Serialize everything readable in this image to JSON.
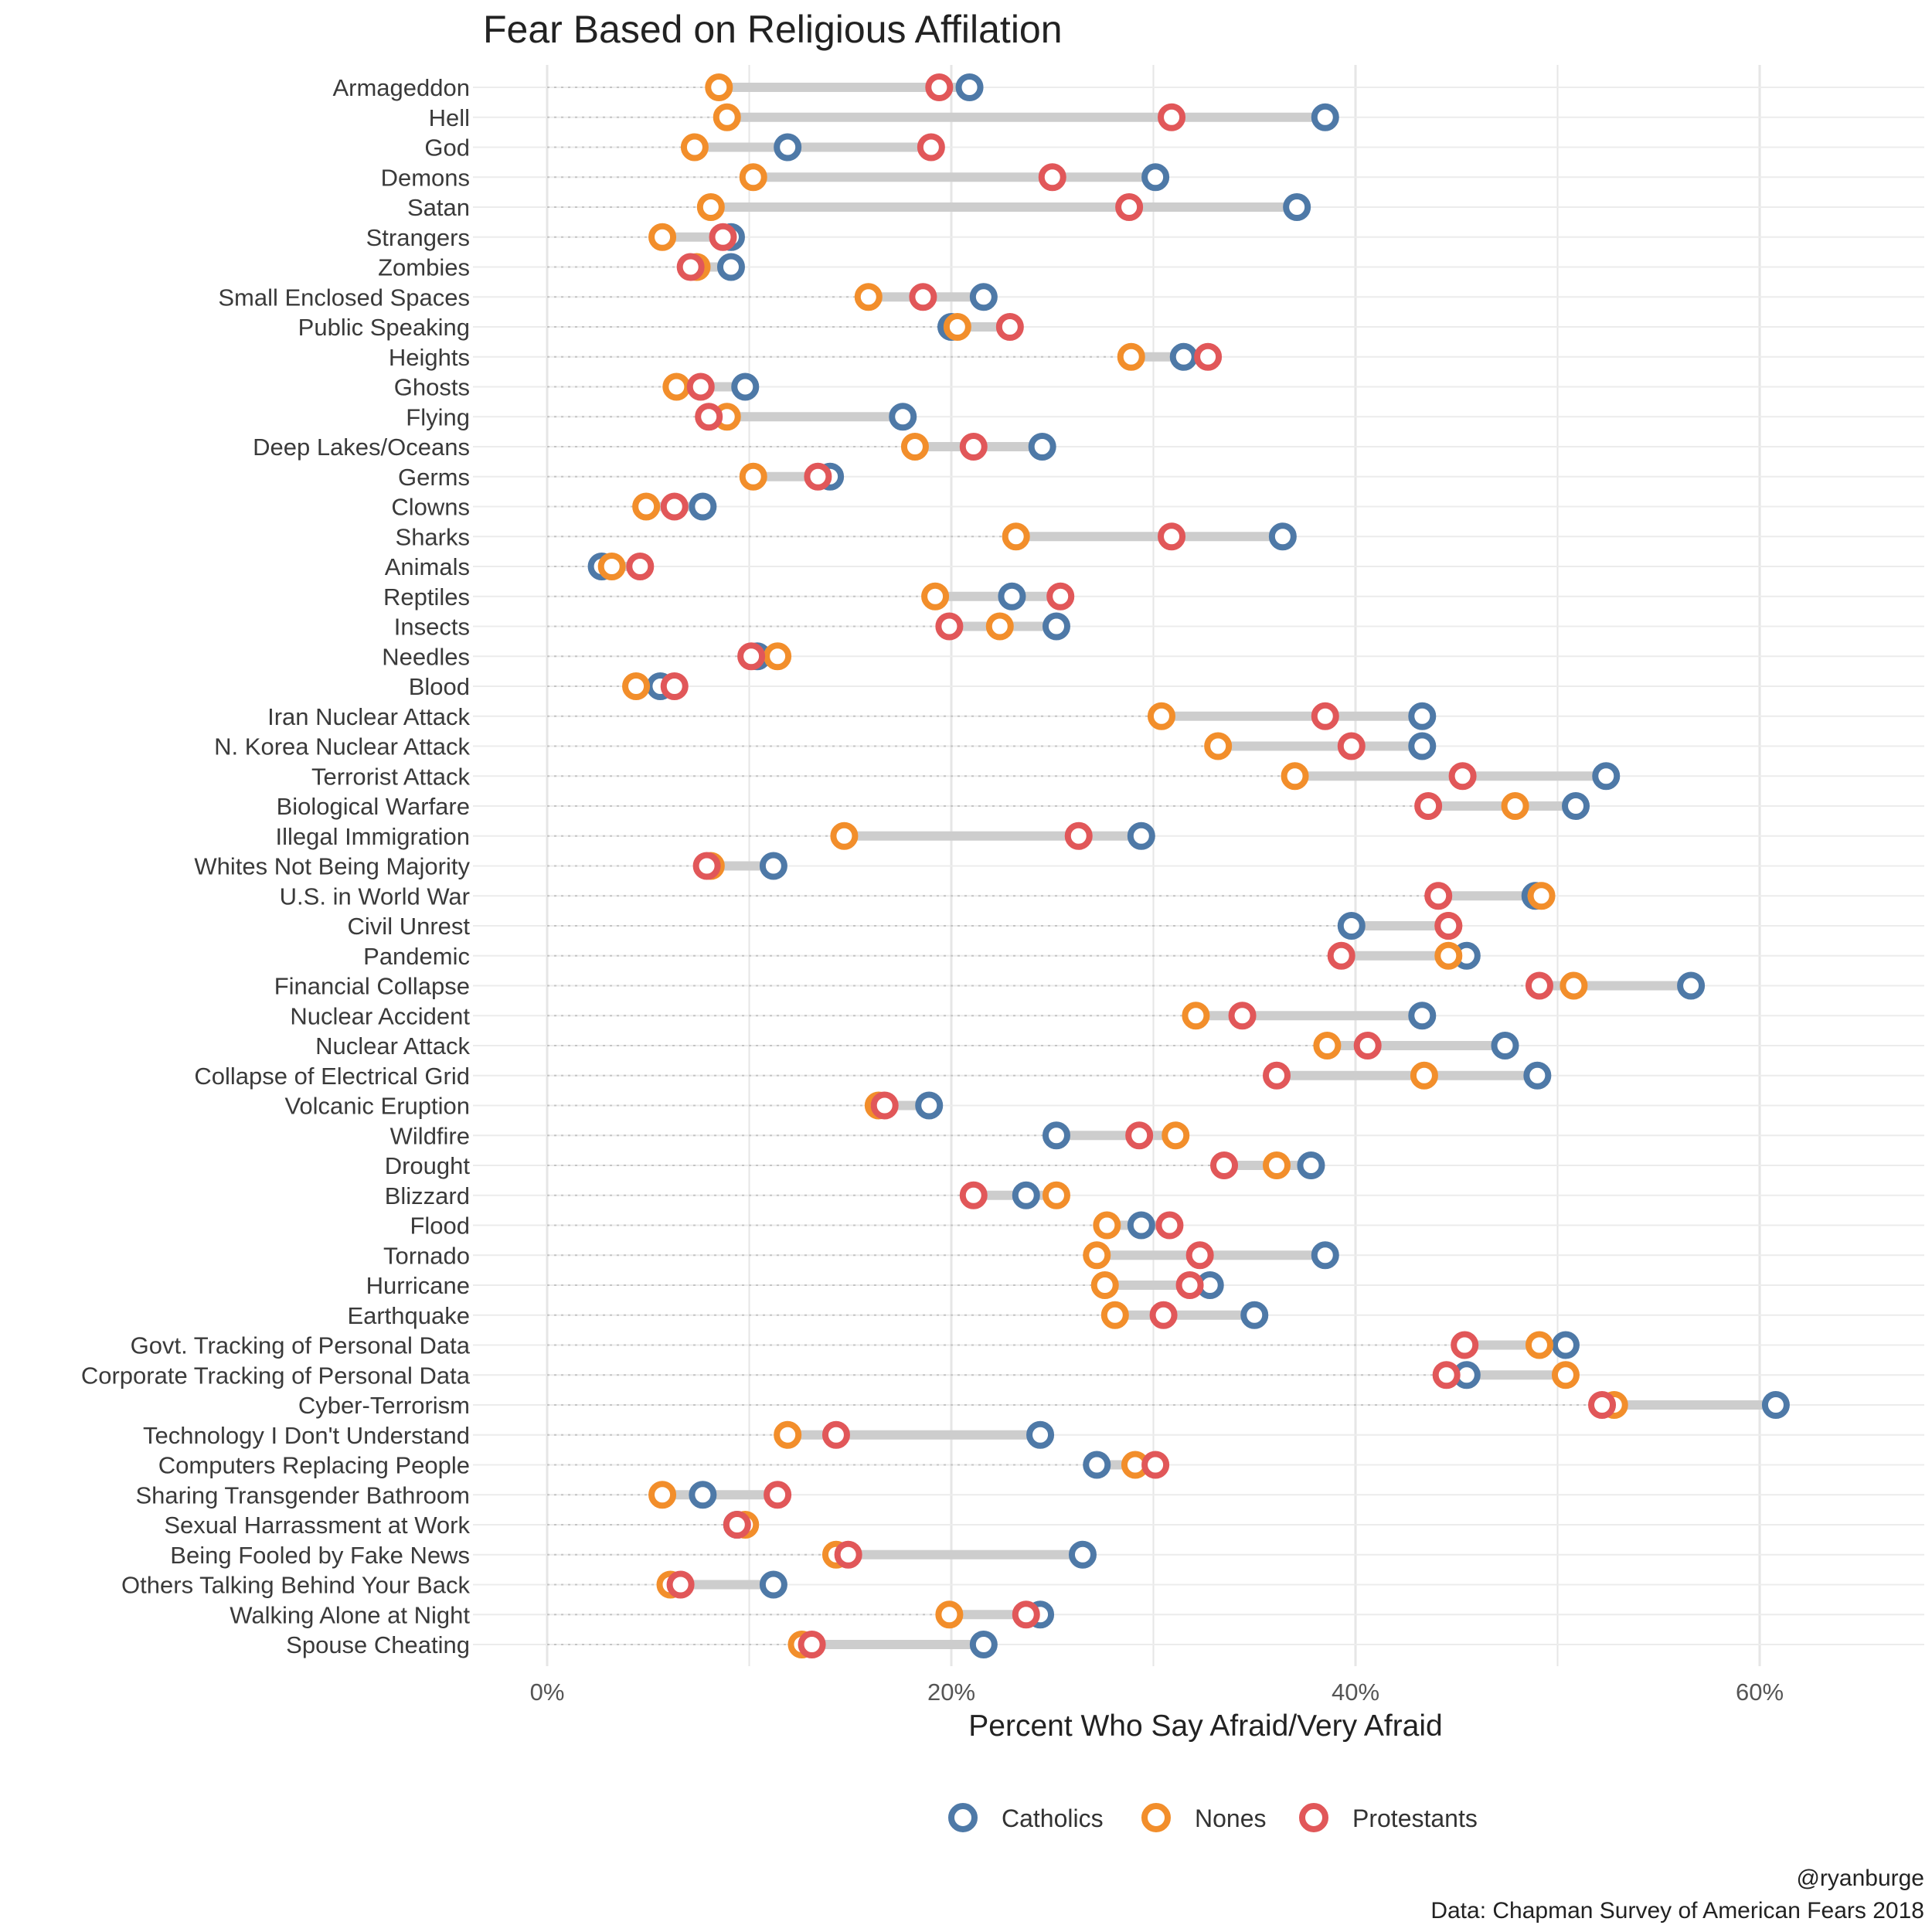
{
  "chart_data": {
    "type": "dumbbell",
    "title": "Fear Based on Religious Affilation",
    "xlabel": "Percent Who Say Afraid/Very Afraid",
    "ylabel": "",
    "xlim": [
      0,
      68
    ],
    "xticks": [
      0,
      20,
      40,
      60
    ],
    "xtick_labels": [
      "0%",
      "20%",
      "40%",
      "60%"
    ],
    "legend_position": "bottom",
    "caption_lines": [
      "@ryanburge",
      "Data: Chapman Survey of American Fears 2018"
    ],
    "series": [
      {
        "key": "catholics",
        "name": "Catholics",
        "color": "#4e79a7"
      },
      {
        "key": "nones",
        "name": "Nones",
        "color": "#f28e2b"
      },
      {
        "key": "protestants",
        "name": "Protestants",
        "color": "#e15759"
      }
    ],
    "categories": [
      {
        "label": "Armageddon",
        "catholics": 20.9,
        "nones": 8.5,
        "protestants": 19.4
      },
      {
        "label": "Hell",
        "catholics": 38.5,
        "nones": 8.9,
        "protestants": 30.9
      },
      {
        "label": "God",
        "catholics": 11.9,
        "nones": 7.3,
        "protestants": 19.0
      },
      {
        "label": "Demons",
        "catholics": 30.1,
        "nones": 10.2,
        "protestants": 25.0
      },
      {
        "label": "Satan",
        "catholics": 37.1,
        "nones": 8.1,
        "protestants": 28.8
      },
      {
        "label": "Strangers",
        "catholics": 9.1,
        "nones": 5.7,
        "protestants": 8.7
      },
      {
        "label": "Zombies",
        "catholics": 9.1,
        "nones": 7.4,
        "protestants": 7.1
      },
      {
        "label": "Small Enclosed Spaces",
        "catholics": 21.6,
        "nones": 15.9,
        "protestants": 18.6
      },
      {
        "label": "Public Speaking",
        "catholics": 20.0,
        "nones": 20.3,
        "protestants": 22.9
      },
      {
        "label": "Heights",
        "catholics": 31.5,
        "nones": 28.9,
        "protestants": 32.7
      },
      {
        "label": "Ghosts",
        "catholics": 9.8,
        "nones": 6.4,
        "protestants": 7.6
      },
      {
        "label": "Flying",
        "catholics": 17.6,
        "nones": 8.9,
        "protestants": 8.0
      },
      {
        "label": "Deep Lakes/Oceans",
        "catholics": 24.5,
        "nones": 18.2,
        "protestants": 21.1
      },
      {
        "label": "Germs",
        "catholics": 14.0,
        "nones": 10.2,
        "protestants": 13.4
      },
      {
        "label": "Clowns",
        "catholics": 7.7,
        "nones": 4.9,
        "protestants": 6.3
      },
      {
        "label": "Sharks",
        "catholics": 36.4,
        "nones": 23.2,
        "protestants": 30.9
      },
      {
        "label": "Animals",
        "catholics": 2.7,
        "nones": 3.2,
        "protestants": 4.6
      },
      {
        "label": "Reptiles",
        "catholics": 23.0,
        "nones": 19.2,
        "protestants": 25.4
      },
      {
        "label": "Insects",
        "catholics": 25.2,
        "nones": 22.4,
        "protestants": 19.9
      },
      {
        "label": "Needles",
        "catholics": 10.4,
        "nones": 11.4,
        "protestants": 10.1
      },
      {
        "label": "Blood",
        "catholics": 5.6,
        "nones": 4.4,
        "protestants": 6.3
      },
      {
        "label": "Iran Nuclear Attack",
        "catholics": 43.3,
        "nones": 30.4,
        "protestants": 38.5
      },
      {
        "label": "N. Korea Nuclear Attack",
        "catholics": 43.3,
        "nones": 33.2,
        "protestants": 39.8
      },
      {
        "label": "Terrorist Attack",
        "catholics": 52.4,
        "nones": 37.0,
        "protestants": 45.3
      },
      {
        "label": "Biological Warfare",
        "catholics": 50.9,
        "nones": 47.9,
        "protestants": 43.6
      },
      {
        "label": "Illegal Immigration",
        "catholics": 29.4,
        "nones": 14.7,
        "protestants": 26.3
      },
      {
        "label": "Whites Not Being Majority",
        "catholics": 11.2,
        "nones": 8.1,
        "protestants": 7.9
      },
      {
        "label": "U.S. in World War",
        "catholics": 48.9,
        "nones": 49.2,
        "protestants": 44.1
      },
      {
        "label": "Civil Unrest",
        "catholics": 39.8,
        "nones": 44.6,
        "protestants": 44.6
      },
      {
        "label": "Pandemic",
        "catholics": 45.5,
        "nones": 44.6,
        "protestants": 39.3
      },
      {
        "label": "Financial Collapse",
        "catholics": 56.6,
        "nones": 50.8,
        "protestants": 49.1
      },
      {
        "label": "Nuclear Accident",
        "catholics": 43.3,
        "nones": 32.1,
        "protestants": 34.4
      },
      {
        "label": "Nuclear Attack",
        "catholics": 47.4,
        "nones": 38.6,
        "protestants": 40.6
      },
      {
        "label": "Collapse of Electrical Grid",
        "catholics": 49.0,
        "nones": 43.4,
        "protestants": 36.1
      },
      {
        "label": "Volcanic Eruption",
        "catholics": 18.9,
        "nones": 16.4,
        "protestants": 16.7
      },
      {
        "label": "Wildfire",
        "catholics": 25.2,
        "nones": 31.1,
        "protestants": 29.3
      },
      {
        "label": "Drought",
        "catholics": 37.8,
        "nones": 36.1,
        "protestants": 33.5
      },
      {
        "label": "Blizzard",
        "catholics": 23.7,
        "nones": 25.2,
        "protestants": 21.1
      },
      {
        "label": "Flood",
        "catholics": 29.4,
        "nones": 27.7,
        "protestants": 30.8
      },
      {
        "label": "Tornado",
        "catholics": 38.5,
        "nones": 27.2,
        "protestants": 32.3
      },
      {
        "label": "Hurricane",
        "catholics": 32.8,
        "nones": 27.6,
        "protestants": 31.8
      },
      {
        "label": "Earthquake",
        "catholics": 35.0,
        "nones": 28.1,
        "protestants": 30.5
      },
      {
        "label": "Govt. Tracking of Personal Data",
        "catholics": 50.4,
        "nones": 49.1,
        "protestants": 45.4
      },
      {
        "label": "Corporate Tracking of Personal Data",
        "catholics": 45.5,
        "nones": 50.4,
        "protestants": 44.5
      },
      {
        "label": "Cyber-Terrorism",
        "catholics": 60.8,
        "nones": 52.8,
        "protestants": 52.2
      },
      {
        "label": "Technology I Don't Understand",
        "catholics": 24.4,
        "nones": 11.9,
        "protestants": 14.3
      },
      {
        "label": "Computers Replacing People",
        "catholics": 27.2,
        "nones": 29.1,
        "protestants": 30.1
      },
      {
        "label": "Sharing Transgender Bathroom",
        "catholics": 7.7,
        "nones": 5.7,
        "protestants": 11.4
      },
      {
        "label": "Sexual Harrassment at Work",
        "catholics": 9.4,
        "nones": 9.8,
        "protestants": 9.4
      },
      {
        "label": "Being Fooled by Fake News",
        "catholics": 26.5,
        "nones": 14.3,
        "protestants": 14.9
      },
      {
        "label": "Others Talking Behind Your Back",
        "catholics": 11.2,
        "nones": 6.1,
        "protestants": 6.6
      },
      {
        "label": "Walking Alone at Night",
        "catholics": 24.4,
        "nones": 19.9,
        "protestants": 23.7
      },
      {
        "label": "Spouse Cheating",
        "catholics": 21.6,
        "nones": 12.6,
        "protestants": 13.1
      }
    ]
  }
}
